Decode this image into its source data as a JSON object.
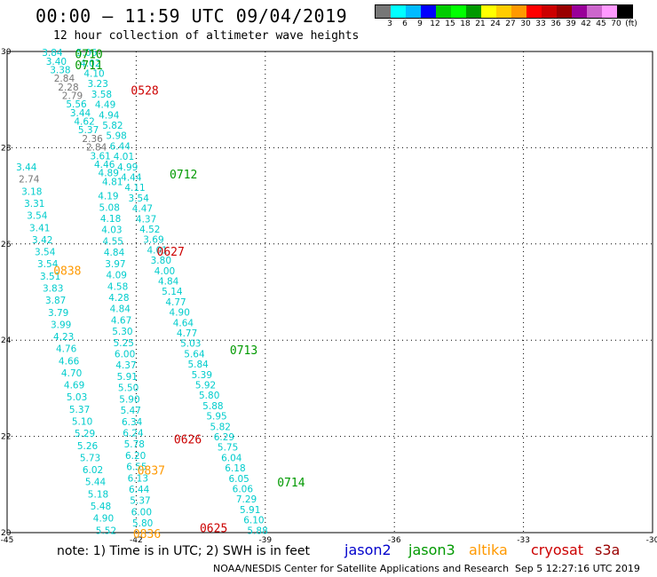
{
  "title": "00:00 – 11:59 UTC 09/04/2019",
  "subtitle": "12 hour collection of altimeter wave heights",
  "scale": {
    "colors": [
      "#777777",
      "#00ffff",
      "#00bbff",
      "#0000ff",
      "#00cc00",
      "#00ff00",
      "#009900",
      "#ffff00",
      "#ffcc00",
      "#ff9900",
      "#ff0000",
      "#cc0000",
      "#990000",
      "#990099",
      "#cc66cc",
      "#ff99ff",
      "#000000"
    ],
    "labels": [
      "3",
      "6",
      "9",
      "12",
      "15",
      "18",
      "21",
      "24",
      "27",
      "30",
      "33",
      "36",
      "39",
      "42",
      "45",
      "70",
      "(ft)"
    ]
  },
  "axes": {
    "lon_ticks": [
      "-45",
      "-42",
      "-39",
      "-36",
      "-33",
      "-30"
    ],
    "lat_ticks": [
      "30",
      "28",
      "26",
      "24",
      "22",
      "20"
    ]
  },
  "tracks": [
    {
      "id": "track-a",
      "values": [
        "3.84",
        "3.40",
        "3.38",
        "2.84",
        "2.28",
        "2.79",
        "5.56",
        "3.44",
        "4.62",
        "5.37",
        "2.36",
        "2.84",
        "3.61",
        "4.46",
        "4.89",
        "4.81"
      ]
    },
    {
      "id": "track-b",
      "values": [
        "5.06",
        "4.02",
        "4.10",
        "3.23",
        "3.58",
        "4.49",
        "4.94",
        "5.82",
        "5.98",
        "6.44",
        "4.01",
        "4.99",
        "4.44",
        "4.11",
        "3.54",
        "4.47",
        "4.37",
        "4.52",
        "3.69",
        "4.01",
        "3.80",
        "4.00",
        "4.84",
        "5.14",
        "4.77",
        "4.90",
        "4.64",
        "4.77",
        "5.03",
        "5.64",
        "5.84",
        "5.39",
        "5.92",
        "5.80",
        "5.88",
        "5.95",
        "5.82",
        "6.29",
        "5.75",
        "6.04",
        "6.18",
        "6.05",
        "6.06",
        "7.29",
        "5.91",
        "6.10",
        "5.88"
      ]
    },
    {
      "id": "track-c",
      "values": [
        "3.44",
        "2.74",
        "3.18",
        "3.31",
        "3.54",
        "3.41",
        "3.42",
        "3.54",
        "3.54",
        "3.51",
        "3.83",
        "3.87",
        "3.79",
        "3.99",
        "4.23",
        "4.76",
        "4.66",
        "4.70",
        "4.69",
        "5.03",
        "5.37",
        "5.10",
        "5.29",
        "5.26",
        "5.73",
        "6.02",
        "5.44",
        "5.18",
        "5.48",
        "4.90",
        "5.52"
      ]
    },
    {
      "id": "track-d",
      "values": [
        "4.19",
        "5.08",
        "4.18",
        "4.03",
        "4.55",
        "4.84",
        "3.97",
        "4.09",
        "4.58",
        "4.28",
        "4.84",
        "4.67",
        "5.30",
        "5.25",
        "6.00",
        "4.37",
        "5.91",
        "5.50",
        "5.90",
        "5.47",
        "6.34",
        "6.24",
        "5.78",
        "6.20",
        "6.55",
        "6.13",
        "6.44",
        "5.37",
        "6.00",
        "5.80"
      ]
    }
  ],
  "pass_labels": [
    {
      "text": "0710",
      "sat": "jason3"
    },
    {
      "text": "0711",
      "sat": "jason3"
    },
    {
      "text": "0528",
      "sat": "cryosat"
    },
    {
      "text": "0712",
      "sat": "jason3"
    },
    {
      "text": "0627",
      "sat": "cryosat"
    },
    {
      "text": "0838",
      "sat": "altika"
    },
    {
      "text": "0713",
      "sat": "jason3"
    },
    {
      "text": "0626",
      "sat": "cryosat"
    },
    {
      "text": "0837",
      "sat": "altika"
    },
    {
      "text": "0714",
      "sat": "jason3"
    },
    {
      "text": "0625",
      "sat": "cryosat"
    },
    {
      "text": "0836",
      "sat": "altika"
    }
  ],
  "sat_colors": {
    "jason2": "#0000cc",
    "jason3": "#009900",
    "altika": "#ff9900",
    "cryosat": "#cc0000",
    "s3a": "#990000",
    "value": "#00cccc",
    "value_low": "#777777"
  },
  "footer": {
    "note": "note:  1) Time is in UTC;  2) SWH is in feet",
    "satellites": [
      {
        "name": "jason2",
        "color": "#0000cc"
      },
      {
        "name": "jason3",
        "color": "#009900"
      },
      {
        "name": "altika",
        "color": "#ff9900"
      },
      {
        "name": "cryosat",
        "color": "#cc0000"
      },
      {
        "name": "s3a",
        "color": "#990000"
      }
    ],
    "credit": "NOAA/NESDIS Center for Satellite Applications and Research",
    "timestamp": "Sep  5 12:27:16 UTC 2019"
  }
}
